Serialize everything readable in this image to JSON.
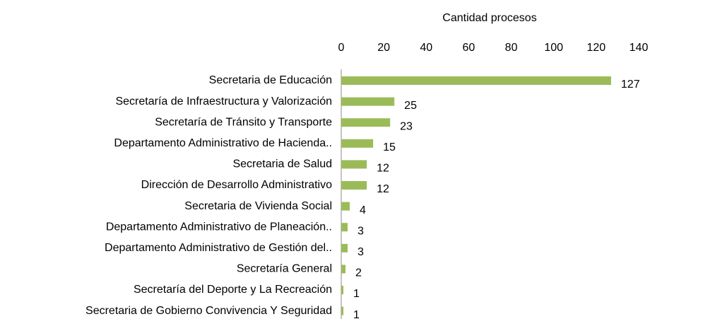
{
  "chart_data": {
    "type": "bar",
    "orientation": "horizontal",
    "x_label": "Cantidad procesos",
    "categories": [
      "Secretaria de Educación",
      "Secretaría de Infraestructura y Valorización",
      "Secretaría de Tránsito y Transporte",
      "Departamento Administrativo de Hacienda..",
      "Secretaria de Salud",
      "Dirección de Desarrollo Administrativo",
      "Secretaria de Vivienda Social",
      "Departamento Administrativo de Planeación..",
      "Departamento Administrativo de Gestión del..",
      "Secretaría General",
      "Secretaría del Deporte y La Recreación",
      "Secretaria de Gobierno Convivencia Y Seguridad"
    ],
    "values": [
      127,
      25,
      23,
      15,
      12,
      12,
      4,
      3,
      3,
      2,
      1,
      1
    ],
    "color": "#9bbb59",
    "xlim": [
      0,
      140
    ],
    "xticks": [
      0,
      20,
      40,
      60,
      80,
      100,
      120,
      140
    ],
    "grid": false
  }
}
